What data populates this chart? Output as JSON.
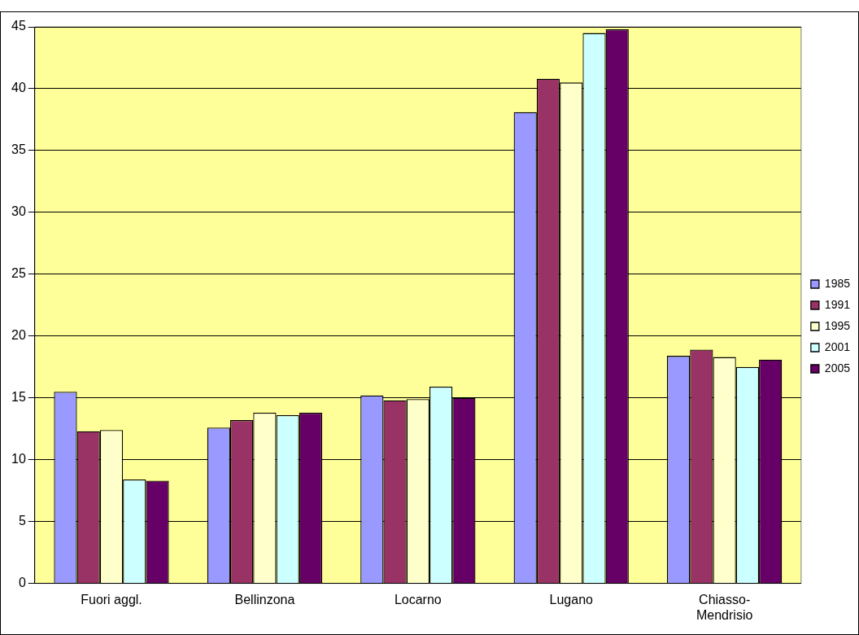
{
  "chart_data": {
    "type": "bar",
    "categories": [
      "Fuori aggl.",
      "Bellinzona",
      "Locarno",
      "Lugano",
      "Chiasso-\nMendrisio"
    ],
    "series": [
      {
        "name": "1985",
        "color": "#9999ff",
        "values": [
          15.5,
          12.6,
          15.2,
          38.1,
          18.4
        ]
      },
      {
        "name": "1991",
        "color": "#993366",
        "values": [
          12.3,
          13.2,
          14.8,
          40.8,
          18.9
        ]
      },
      {
        "name": "1995",
        "color": "#ffffcc",
        "values": [
          12.4,
          13.8,
          14.9,
          40.5,
          18.3
        ]
      },
      {
        "name": "2001",
        "color": "#ccffff",
        "values": [
          8.4,
          13.6,
          15.9,
          44.5,
          17.5
        ]
      },
      {
        "name": "2005",
        "color": "#660066",
        "values": [
          8.3,
          13.8,
          15.0,
          44.8,
          18.1
        ]
      }
    ],
    "ylim": [
      0,
      45
    ],
    "yticks": [
      0,
      5,
      10,
      15,
      20,
      25,
      30,
      35,
      40,
      45
    ],
    "grid": "y",
    "legend": "right"
  }
}
